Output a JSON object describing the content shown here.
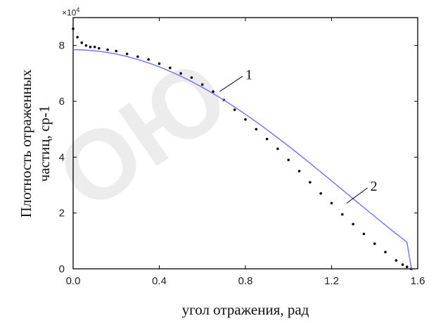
{
  "chart_data": {
    "type": "scatter",
    "title": "",
    "xlabel": "угол отражения, рад",
    "ylabel_lines": [
      "Плотность отраженных",
      "частиц,  ср-1"
    ],
    "y_multiplier": "×10",
    "y_multiplier_exp": "4",
    "xlim": [
      0.0,
      1.6
    ],
    "ylim": [
      0,
      90000
    ],
    "x_ticks": [
      0.0,
      0.4,
      0.8,
      1.2,
      1.6
    ],
    "x_tick_labels": [
      "0.0",
      "0.4",
      "0.8",
      "1.2",
      "1.6"
    ],
    "y_ticks": [
      0,
      20000,
      40000,
      60000,
      80000
    ],
    "y_tick_labels": [
      "0",
      "2",
      "4",
      "6",
      "8"
    ],
    "grid": false,
    "series": [
      {
        "kind": "scatter",
        "color": "#000000",
        "x": [
          0.0,
          0.02,
          0.04,
          0.06,
          0.08,
          0.1,
          0.12,
          0.16,
          0.2,
          0.25,
          0.3,
          0.35,
          0.4,
          0.45,
          0.5,
          0.55,
          0.6,
          0.65,
          0.7,
          0.75,
          0.8,
          0.85,
          0.9,
          0.95,
          1.0,
          1.05,
          1.1,
          1.15,
          1.2,
          1.25,
          1.3,
          1.35,
          1.4,
          1.45,
          1.5,
          1.53,
          1.55,
          1.57
        ],
        "y": [
          86000,
          83000,
          81000,
          80000,
          79500,
          79500,
          79000,
          78500,
          78000,
          77000,
          76000,
          75000,
          73500,
          72000,
          70000,
          68500,
          66000,
          63500,
          60500,
          57000,
          53500,
          50000,
          46500,
          43000,
          39000,
          35000,
          31000,
          27000,
          23500,
          19500,
          16000,
          12500,
          9000,
          6000,
          3000,
          1500,
          700,
          0
        ]
      },
      {
        "kind": "line",
        "color": "#6f6fff",
        "x": [
          0.0,
          0.05,
          0.1,
          0.15,
          0.2,
          0.25,
          0.3,
          0.35,
          0.4,
          0.45,
          0.5,
          0.55,
          0.6,
          0.65,
          0.7,
          0.75,
          0.8,
          0.85,
          0.9,
          0.95,
          1.0,
          1.05,
          1.1,
          1.15,
          1.2,
          1.25,
          1.3,
          1.35,
          1.4,
          1.45,
          1.5,
          1.55,
          1.5708
        ],
        "y": [
          78500,
          78402,
          78108,
          77618,
          76936,
          76063,
          75004,
          73763,
          72345,
          70754,
          68998,
          67083,
          65015,
          62801,
          60450,
          57970,
          55369,
          52659,
          49848,
          46948,
          43969,
          40920,
          37819,
          34675,
          31502,
          28312,
          25119,
          21934,
          18771,
          15640,
          12553,
          9524,
          0
        ]
      }
    ],
    "annotations": [
      {
        "text": "1",
        "x": 0.68,
        "y": 63500,
        "tx": 0.8,
        "ty": 69500
      },
      {
        "text": "2",
        "x": 1.27,
        "y": 23500,
        "tx": 1.38,
        "ty": 29500
      }
    ]
  },
  "watermark": "ОЮ"
}
